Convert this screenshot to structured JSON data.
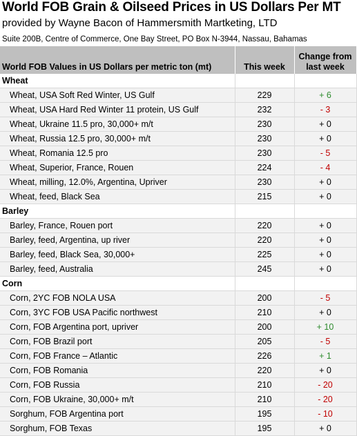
{
  "header": {
    "title": "World FOB Grain & Oilseed Prices in US Dollars Per MT",
    "subtitle": "provided by Wayne Bacon of Hammersmith Martketing, LTD",
    "address": "Suite 200B, Centre of Commerce, One Bay Street, PO Box N-3944, Nassau, Bahamas"
  },
  "table": {
    "col_product": "World FOB Values in US Dollars per metric ton (mt)",
    "col_week": "This week",
    "col_change_line1": "Change from",
    "col_change_line2": "last week",
    "rows": [
      {
        "type": "category",
        "label": "Wheat"
      },
      {
        "type": "item",
        "label": "Wheat, USA Soft Red Winter, US Gulf",
        "week": "229",
        "change": "+ 6",
        "dir": "up"
      },
      {
        "type": "item",
        "label": "Wheat, USA Hard Red Winter 11 protein, US Gulf",
        "week": "232",
        "change": "- 3",
        "dir": "down"
      },
      {
        "type": "item",
        "label": "Wheat, Ukraine 11.5 pro, 30,000+ m/t",
        "week": "230",
        "change": "+ 0",
        "dir": "flat"
      },
      {
        "type": "item",
        "label": "Wheat, Russia 12.5 pro, 30,000+ m/t",
        "week": "230",
        "change": "+ 0",
        "dir": "flat"
      },
      {
        "type": "item",
        "label": "Wheat, Romania 12.5 pro",
        "week": "230",
        "change": "- 5",
        "dir": "down"
      },
      {
        "type": "item",
        "label": "Wheat, Superior, France, Rouen",
        "week": "224",
        "change": "- 4",
        "dir": "down"
      },
      {
        "type": "item",
        "label": "Wheat, milling, 12.0%, Argentina, Upriver",
        "week": "230",
        "change": "+ 0",
        "dir": "flat"
      },
      {
        "type": "item",
        "label": "Wheat, feed, Black Sea",
        "week": "215",
        "change": "+ 0",
        "dir": "flat"
      },
      {
        "type": "category",
        "label": "Barley"
      },
      {
        "type": "item",
        "label": "Barley, France, Rouen port",
        "week": "220",
        "change": "+ 0",
        "dir": "flat"
      },
      {
        "type": "item",
        "label": "Barley, feed, Argentina, up river",
        "week": "220",
        "change": "+ 0",
        "dir": "flat"
      },
      {
        "type": "item",
        "label": "Barley, feed, Black Sea, 30,000+",
        "week": "225",
        "change": "+ 0",
        "dir": "flat"
      },
      {
        "type": "item",
        "label": "Barley, feed, Australia",
        "week": "245",
        "change": "+ 0",
        "dir": "flat"
      },
      {
        "type": "category",
        "label": "Corn"
      },
      {
        "type": "item",
        "label": "Corn, 2YC FOB NOLA USA",
        "week": "200",
        "change": "- 5",
        "dir": "down"
      },
      {
        "type": "item",
        "label": "Corn, 3YC FOB USA Pacific northwest",
        "week": "210",
        "change": "+ 0",
        "dir": "flat"
      },
      {
        "type": "item",
        "label": "Corn, FOB Argentina port, upriver",
        "week": "200",
        "change": "+ 10",
        "dir": "up"
      },
      {
        "type": "item",
        "label": "Corn, FOB Brazil port",
        "week": "205",
        "change": "- 5",
        "dir": "down"
      },
      {
        "type": "item",
        "label": "Corn, FOB France – Atlantic",
        "week": "226",
        "change": "+ 1",
        "dir": "up"
      },
      {
        "type": "item",
        "label": "Corn, FOB Romania",
        "week": "220",
        "change": "+ 0",
        "dir": "flat"
      },
      {
        "type": "item",
        "label": "Corn, FOB Russia",
        "week": "210",
        "change": "- 20",
        "dir": "down"
      },
      {
        "type": "item",
        "label": "Corn, FOB Ukraine, 30,000+ m/t",
        "week": "210",
        "change": "- 20",
        "dir": "down"
      },
      {
        "type": "item",
        "label": "Sorghum, FOB Argentina port",
        "week": "195",
        "change": "- 10",
        "dir": "down"
      },
      {
        "type": "item",
        "label": "Sorghum, FOB Texas",
        "week": "195",
        "change": "+ 0",
        "dir": "flat"
      }
    ]
  },
  "colors": {
    "up": "#2e8b2e",
    "down": "#c00000",
    "flat": "#000000",
    "header_bg": "#bfbfbf",
    "alt_row_bg": "#f2f2f2"
  }
}
